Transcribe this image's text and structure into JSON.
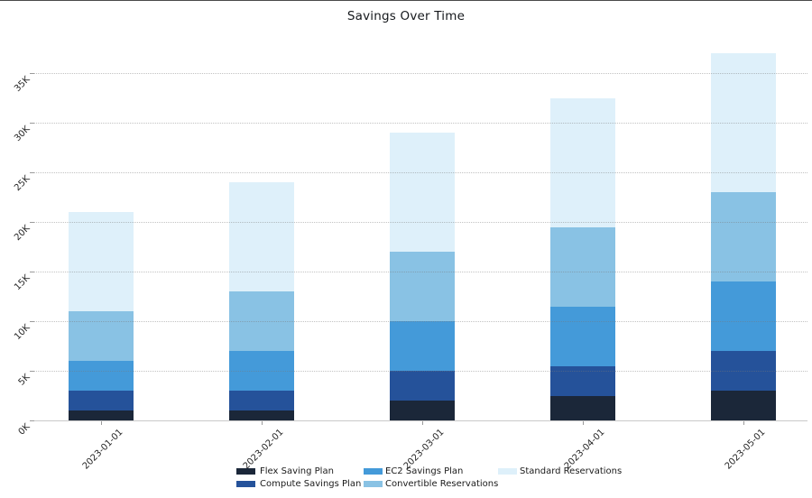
{
  "title": "Savings Over Time",
  "chart_data": {
    "type": "bar",
    "stacked": true,
    "title": "Savings Over Time",
    "categories": [
      "2023-01-01",
      "2023-02-01",
      "2023-03-01",
      "2023-04-01",
      "2023-05-01"
    ],
    "series": [
      {
        "name": "Flex Saving Plan",
        "color": "#1b2739",
        "values": [
          1000,
          1000,
          2000,
          2500,
          3000
        ]
      },
      {
        "name": "Compute Savings Plan",
        "color": "#25529a",
        "values": [
          2000,
          2000,
          3000,
          3000,
          4000
        ]
      },
      {
        "name": "EC2 Savings Plan",
        "color": "#449ad9",
        "values": [
          3000,
          4000,
          5000,
          6000,
          7000
        ]
      },
      {
        "name": "Convertible Reservations",
        "color": "#89c2e4",
        "values": [
          5000,
          6000,
          7000,
          8000,
          9000
        ]
      },
      {
        "name": "Standard Reservations",
        "color": "#def0fa",
        "values": [
          10000,
          11000,
          12000,
          13000,
          14000
        ]
      }
    ],
    "stack_totals": [
      21000,
      24000,
      29000,
      32500,
      37000
    ],
    "y_ticks": [
      {
        "value": 0,
        "label": "0K"
      },
      {
        "value": 5000,
        "label": "5K"
      },
      {
        "value": 10000,
        "label": "10K"
      },
      {
        "value": 15000,
        "label": "15K"
      },
      {
        "value": 20000,
        "label": "20K"
      },
      {
        "value": 25000,
        "label": "25K"
      },
      {
        "value": 30000,
        "label": "30K"
      },
      {
        "value": 35000,
        "label": "35K"
      }
    ],
    "ylim": [
      0,
      37800
    ],
    "grid": "dotted horizontal",
    "legend_position": "bottom",
    "legend_columns": 3,
    "tick_label_rotation": 45
  }
}
